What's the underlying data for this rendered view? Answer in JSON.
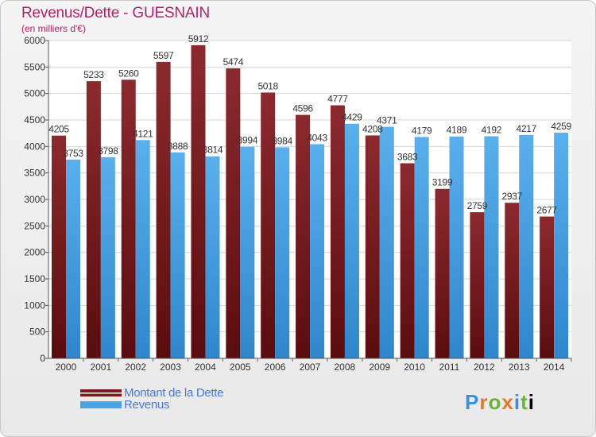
{
  "title": "Revenus/Dette - GUESNAIN",
  "subtitle": "(en milliers d'€)",
  "logo_text": "Proxiti",
  "colors": {
    "title": "#b5226a",
    "debt_bar": "#7a1a1e",
    "revenue_bar": "#4aa3e4",
    "legend_text": "#4a78d8"
  },
  "legend": [
    {
      "label": "Montant de la Dette",
      "color": "#7a1a1e"
    },
    {
      "label": "Revenus",
      "color": "#4aa3e4"
    }
  ],
  "chart_data": {
    "type": "bar",
    "categories": [
      "2000",
      "2001",
      "2002",
      "2003",
      "2004",
      "2005",
      "2006",
      "2007",
      "2008",
      "2009",
      "2010",
      "2011",
      "2012",
      "2013",
      "2014"
    ],
    "series": [
      {
        "name": "Montant de la Dette",
        "values": [
          4205,
          5233,
          5260,
          5597,
          5912,
          5474,
          5018,
          4596,
          4777,
          4208,
          3683,
          3199,
          2759,
          2937,
          2677
        ]
      },
      {
        "name": "Revenus",
        "values": [
          3753,
          3798,
          4121,
          3888,
          3814,
          3994,
          3984,
          4043,
          4429,
          4371,
          4179,
          4189,
          4192,
          4217,
          4259
        ]
      }
    ],
    "value_labels": [
      [
        "4205",
        "5233",
        "5260",
        "5597",
        "5912",
        "5474",
        "5018",
        "4596",
        "4777",
        "4208",
        "3683",
        "3199",
        "2759",
        "2937",
        "2677"
      ],
      [
        "3753",
        "3798",
        "4121",
        "3888",
        "3814",
        "3994",
        "3984",
        "4043",
        "4429",
        "4371",
        "4179",
        "4189",
        "4192",
        "4217",
        "4259"
      ]
    ],
    "ylim": [
      0,
      6000
    ],
    "yticks": [
      0,
      500,
      1000,
      1500,
      2000,
      2500,
      3000,
      3500,
      4000,
      4500,
      5000,
      5500,
      6000
    ],
    "grid": true,
    "legend_position": "bottom-left"
  }
}
